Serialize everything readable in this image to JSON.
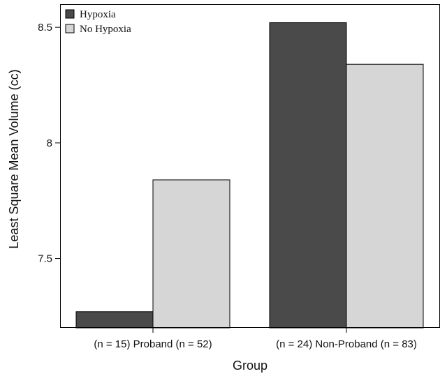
{
  "chart_data": {
    "type": "bar",
    "title": "",
    "xlabel": "Group",
    "ylabel": "Least Square Mean Volume (cc)",
    "categories": [
      "(n = 15) Proband (n = 52)",
      "(n = 24) Non-Proband (n = 83)"
    ],
    "series": [
      {
        "name": "Hypoxia",
        "values": [
          7.27,
          8.52
        ],
        "color": "#4a4a4a"
      },
      {
        "name": "No Hypoxia",
        "values": [
          7.84,
          8.34
        ],
        "color": "#d6d6d6"
      }
    ],
    "ylim": [
      7.2,
      8.6
    ],
    "yticks": [
      7.5,
      8,
      8.5
    ],
    "ytick_labels": [
      "7.5",
      "8",
      "8.5"
    ],
    "grid": false,
    "legend_position": "top-left"
  }
}
